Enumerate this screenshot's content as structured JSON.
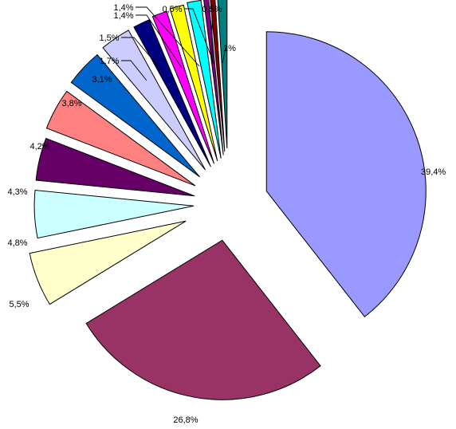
{
  "chart_data": {
    "type": "pie",
    "exploded": true,
    "legend": "none",
    "title": "",
    "slices": [
      {
        "value": 39.4,
        "label": "39,4%",
        "color": "#9999ff"
      },
      {
        "value": 26.8,
        "label": "26,8%",
        "color": "#993366"
      },
      {
        "value": 5.5,
        "label": "5,5%",
        "color": "#ffffcc"
      },
      {
        "value": 4.8,
        "label": "4,8%",
        "color": "#ccffff"
      },
      {
        "value": 4.3,
        "label": "4,3%",
        "color": "#660066"
      },
      {
        "value": 4.2,
        "label": "4,2%",
        "color": "#ff8080"
      },
      {
        "value": 3.8,
        "label": "3,8%",
        "color": "#0066cc"
      },
      {
        "value": 3.1,
        "label": "3,1%",
        "color": "#ccccff"
      },
      {
        "value": 1.7,
        "label": "1,7%",
        "color": "#000080"
      },
      {
        "value": 1.5,
        "label": "1,5%",
        "color": "#ff00ff"
      },
      {
        "value": 1.4,
        "label": "1,4%",
        "color": "#ffff00"
      },
      {
        "value": 1.4,
        "label": "1,4%",
        "color": "#00ffff"
      },
      {
        "value": 0.5,
        "label": "0,5%",
        "color": "#800080"
      },
      {
        "value": 0.5,
        "label": "0,5%",
        "color": "#800000"
      },
      {
        "value": 1,
        "label": "1%",
        "color": "#008080"
      }
    ]
  }
}
